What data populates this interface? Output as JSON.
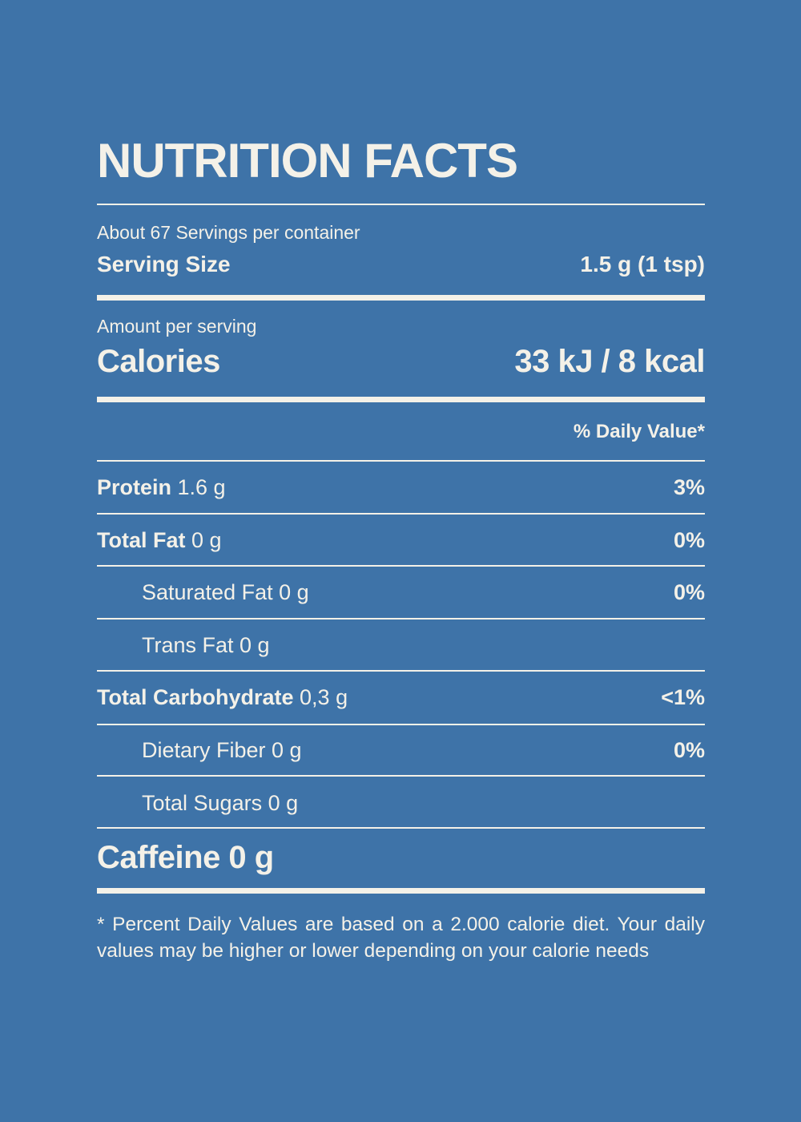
{
  "title": "NUTRITION FACTS",
  "servings": {
    "per_container": "About 67 Servings per container",
    "size_label": "Serving Size",
    "size_value": "1.5 g (1 tsp)"
  },
  "calories": {
    "amount_label": "Amount per serving",
    "label": "Calories",
    "value": "33 kJ / 8 kcal"
  },
  "daily_value_header": "% Daily Value*",
  "nutrients": [
    {
      "name": "Protein",
      "amount": " 1.6 g",
      "dv": "3%"
    },
    {
      "name": "Total Fat",
      "amount": " 0 g",
      "dv": "0%"
    },
    {
      "name": "Saturated Fat 0 g",
      "amount": "",
      "dv": "0%"
    },
    {
      "name": "Trans Fat 0 g",
      "amount": "",
      "dv": ""
    },
    {
      "name": "Total Carbohydrate",
      "amount": " 0,3 g",
      "dv": "<1%"
    },
    {
      "name": "Dietary Fiber 0 g",
      "amount": "",
      "dv": "0%"
    },
    {
      "name": "Total Sugars 0 g",
      "amount": "",
      "dv": ""
    }
  ],
  "caffeine": "Caffeine 0 g",
  "footnote": "* Percent Daily Values are based on a 2.000 calorie diet. Your daily values may be higher or lower depending on your calorie needs",
  "colors": {
    "background": "#3e73a8",
    "text": "#f4f1e8"
  }
}
